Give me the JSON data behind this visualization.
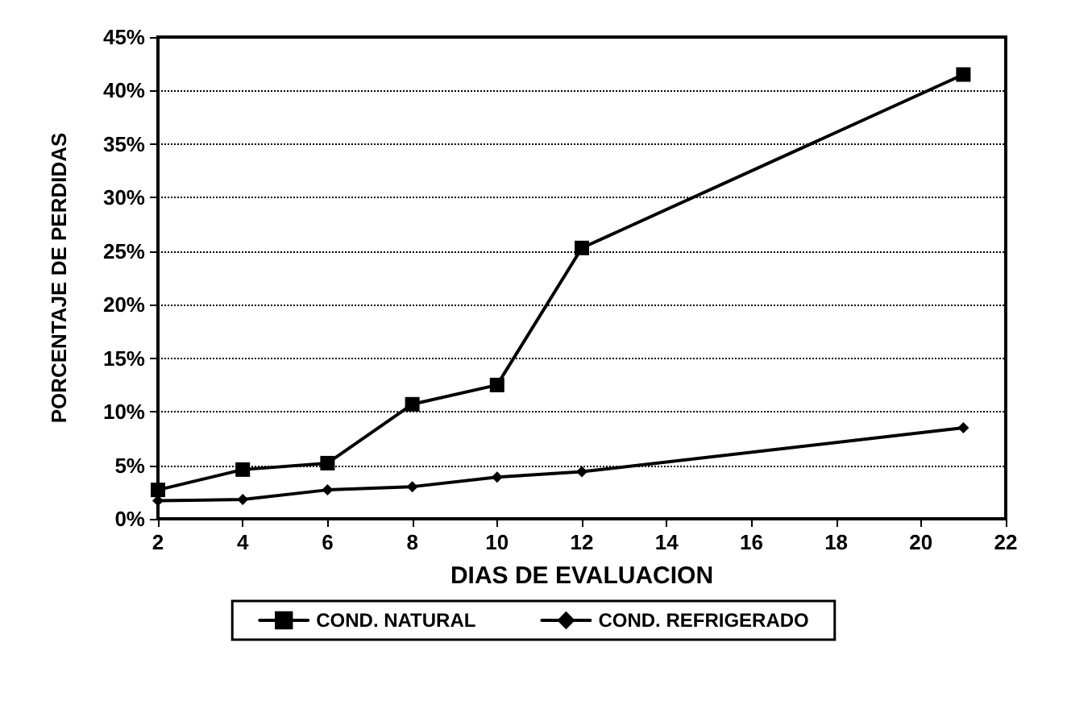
{
  "chart_data": {
    "type": "line",
    "xlabel": "DIAS DE EVALUACION",
    "ylabel": "PORCENTAJE DE PERDIDAS",
    "x": [
      2,
      4,
      6,
      8,
      10,
      12,
      21
    ],
    "series": [
      {
        "name": "COND. NATURAL",
        "color": "#000000",
        "marker": "square",
        "values": [
          2.7,
          4.6,
          5.2,
          10.7,
          12.5,
          25.3,
          41.5
        ]
      },
      {
        "name": "COND. REFRIGERADO",
        "color": "#000000",
        "marker": "diamond",
        "values": [
          1.7,
          1.8,
          2.7,
          3.0,
          3.9,
          4.4,
          8.5
        ]
      }
    ],
    "xlim": [
      2,
      22
    ],
    "xticks": [
      2,
      4,
      6,
      8,
      10,
      12,
      14,
      16,
      18,
      20,
      22
    ],
    "ylim": [
      0,
      45
    ],
    "yticks": [
      {
        "value": 0,
        "label": "0%"
      },
      {
        "value": 5,
        "label": "5%"
      },
      {
        "value": 10,
        "label": "10%"
      },
      {
        "value": 15,
        "label": "15%"
      },
      {
        "value": 20,
        "label": "20%"
      },
      {
        "value": 25,
        "label": "25%"
      },
      {
        "value": 30,
        "label": "30%"
      },
      {
        "value": 35,
        "label": "35%"
      },
      {
        "value": 40,
        "label": "40%"
      },
      {
        "value": 45,
        "label": "45%"
      }
    ],
    "grid": "y",
    "legend": "bottom",
    "line_style": "solid"
  }
}
